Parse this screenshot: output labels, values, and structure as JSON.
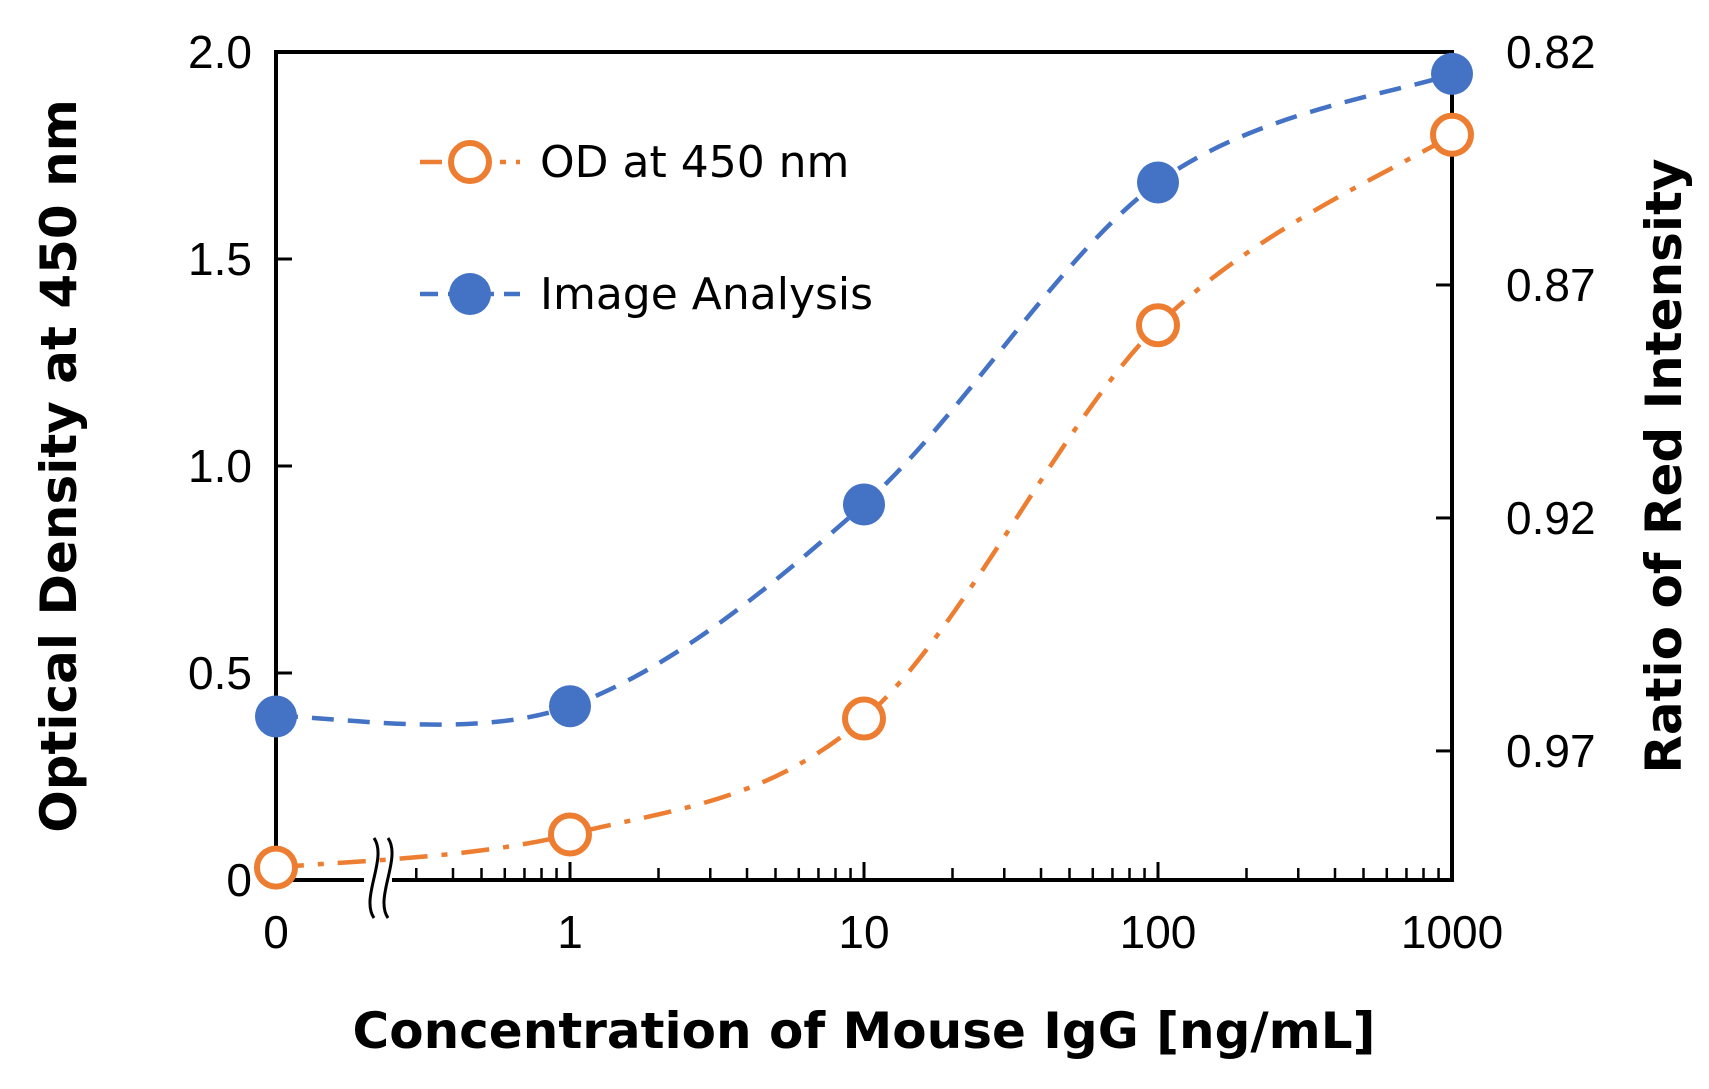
{
  "chart_data": {
    "type": "line",
    "title": "",
    "xlabel": "Concentration of Mouse IgG [ng/mL]",
    "ylabel": "Optical Density at 450 nm",
    "y2label": "Ratio of Red Intensity",
    "x_scale": "log (0 placed at left edge, axis break after 0)",
    "x_tick_labels": [
      "0",
      "1",
      "10",
      "100",
      "1000"
    ],
    "x": [
      0,
      1,
      10,
      100,
      1000
    ],
    "ylim": [
      0,
      2.0
    ],
    "y_ticks": [
      0,
      0.5,
      1.0,
      1.5,
      2.0
    ],
    "y_tick_labels": [
      "0",
      "0.5",
      "1.0",
      "1.5",
      "2.0"
    ],
    "y2lim": [
      0.9977,
      0.82
    ],
    "y2_reversed": true,
    "y2_ticks": [
      0.82,
      0.87,
      0.92,
      0.97
    ],
    "y2_tick_labels": [
      "0.82",
      "0.87",
      "0.92",
      "0.97"
    ],
    "legend_position": "top-left",
    "series": [
      {
        "name": "OD at 450 nm",
        "axis": "left",
        "values": [
          0.03,
          0.11,
          0.39,
          1.34,
          1.8
        ],
        "color": "#ED7D31",
        "marker": "open-circle",
        "line_style": "dash-dot"
      },
      {
        "name": "Image Analysis",
        "axis": "right",
        "values": [
          0.9626,
          0.9604,
          0.9171,
          0.848,
          0.8247
        ],
        "color": "#4472C4",
        "marker": "filled-circle",
        "line_style": "dashed"
      }
    ]
  }
}
